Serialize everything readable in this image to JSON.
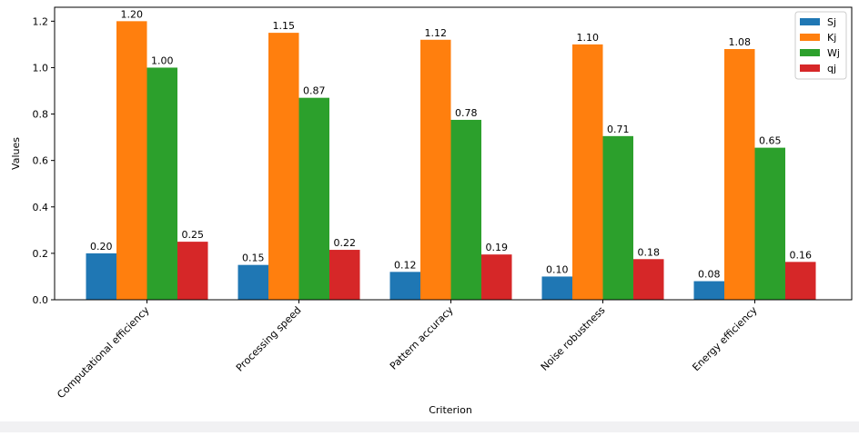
{
  "chart_data": {
    "type": "bar",
    "title": "",
    "xlabel": "Criterion",
    "ylabel": "Values",
    "ylim": [
      0,
      1.26
    ],
    "yticks": [
      "0.0",
      "0.2",
      "0.4",
      "0.6",
      "0.8",
      "1.0",
      "1.2"
    ],
    "categories": [
      "Computational efficiency",
      "Processing speed",
      "Pattern accuracy",
      "Noise robustness",
      "Energy efficiency"
    ],
    "series": [
      {
        "name": "Sj",
        "color": "#1f77b4",
        "values": [
          0.2,
          0.15,
          0.12,
          0.1,
          0.08
        ],
        "labels": [
          "0.20",
          "0.15",
          "0.12",
          "0.10",
          "0.08"
        ]
      },
      {
        "name": "Kj",
        "color": "#ff7f0e",
        "values": [
          1.2,
          1.15,
          1.12,
          1.1,
          1.08
        ],
        "labels": [
          "1.20",
          "1.15",
          "1.12",
          "1.10",
          "1.08"
        ]
      },
      {
        "name": "Wj",
        "color": "#2ca02c",
        "values": [
          1.0,
          0.87,
          0.775,
          0.705,
          0.655
        ],
        "labels": [
          "1.00",
          "0.87",
          "0.78",
          "0.71",
          "0.65"
        ]
      },
      {
        "name": "qj",
        "color": "#d62728",
        "values": [
          0.25,
          0.215,
          0.195,
          0.175,
          0.163
        ],
        "labels": [
          "0.25",
          "0.22",
          "0.19",
          "0.18",
          "0.16"
        ]
      }
    ],
    "legend": "top-right",
    "grid": false
  }
}
